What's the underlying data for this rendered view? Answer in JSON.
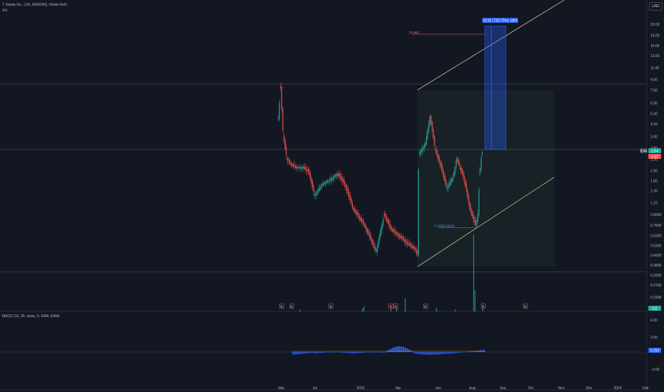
{
  "header": {
    "title": "T Stamp Inc., 12h, NASDAQ, Heikin Ashi",
    "volume_label": "Vol",
    "macd_label": "MACD (12, 26, close, 9, EMA, EMA)",
    "currency": "USD"
  },
  "colors": {
    "background": "#131722",
    "up": "#26a69a",
    "down": "#ef5350",
    "channel": "#d6d6a0",
    "target_box": "#2962ff",
    "macd_hist": "#2962ff"
  },
  "chart_data": {
    "type": "candlestick",
    "symbol": "IDAI",
    "scale": "log",
    "price_axis_ticks": [
      "23.00",
      "19.00",
      "16.00",
      "13.50",
      "11.00",
      "9.00",
      "7.50",
      "6.00",
      "5.00",
      "4.20",
      "3.40",
      "2.80",
      "2.30",
      "1.90",
      "1.60",
      "1.35",
      "1.10",
      "0.9000",
      "0.7500",
      "0.6300",
      "0.5300",
      "0.4500",
      "0.3800",
      "0.3200",
      "0.2700",
      "0.2200"
    ],
    "time_axis_ticks": [
      "Mar",
      "Jul",
      "2023",
      "Apr",
      "Jun",
      "Aug",
      "Sep",
      "Oct",
      "Nov",
      "Dec",
      "2024",
      "Feb"
    ],
    "macd_axis_ticks": [
      "4.00",
      "2.00",
      "−2.00"
    ],
    "last_price_label": "2.64",
    "last_price_secondary_label": "2.42",
    "volume_badge": "111",
    "macd_badge": "0.250",
    "target_label": "18.91 (720.75%) 1891",
    "target_price_label": "(15.86)",
    "support_label": "0.786(0.6920)",
    "event_markers": [
      "E",
      "E",
      "E",
      "S",
      "E",
      "E",
      "E",
      "E"
    ],
    "price_series": [
      {
        "date": "2022-02-25",
        "close": 4.6
      },
      {
        "date": "2022-03-03",
        "close": 7.8
      },
      {
        "date": "2022-03-10",
        "close": 3.4
      },
      {
        "date": "2022-03-20",
        "close": 2.3
      },
      {
        "date": "2022-04-01",
        "close": 2.1
      },
      {
        "date": "2022-04-15",
        "close": 2.0
      },
      {
        "date": "2022-05-01",
        "close": 2.0
      },
      {
        "date": "2022-05-15",
        "close": 1.9
      },
      {
        "date": "2022-06-01",
        "close": 1.25
      },
      {
        "date": "2022-06-20",
        "close": 1.5
      },
      {
        "date": "2022-07-10",
        "close": 1.6
      },
      {
        "date": "2022-08-01",
        "close": 1.8
      },
      {
        "date": "2022-08-20",
        "close": 1.5
      },
      {
        "date": "2022-09-10",
        "close": 1.0
      },
      {
        "date": "2022-10-10",
        "close": 0.75
      },
      {
        "date": "2022-11-10",
        "close": 0.48
      },
      {
        "date": "2022-12-01",
        "close": 0.9
      },
      {
        "date": "2022-12-20",
        "close": 0.7
      },
      {
        "date": "2023-01-10",
        "close": 0.62
      },
      {
        "date": "2023-02-01",
        "close": 0.55
      },
      {
        "date": "2023-02-20",
        "close": 0.5
      },
      {
        "date": "2023-02-28",
        "close": 0.45
      },
      {
        "date": "2023-03-02",
        "close": 2.5
      },
      {
        "date": "2023-03-20",
        "close": 3.0
      },
      {
        "date": "2023-04-01",
        "close": 4.8
      },
      {
        "date": "2023-04-15",
        "close": 2.7
      },
      {
        "date": "2023-05-01",
        "close": 2.0
      },
      {
        "date": "2023-05-15",
        "close": 1.4
      },
      {
        "date": "2023-06-01",
        "close": 1.7
      },
      {
        "date": "2023-06-10",
        "close": 2.3
      },
      {
        "date": "2023-06-20",
        "close": 2.0
      },
      {
        "date": "2023-07-01",
        "close": 1.6
      },
      {
        "date": "2023-07-15",
        "close": 1.0
      },
      {
        "date": "2023-07-31",
        "close": 0.75
      },
      {
        "date": "2023-08-05",
        "close": 0.9
      },
      {
        "date": "2023-08-10",
        "close": 1.8
      },
      {
        "date": "2023-08-15",
        "close": 2.5
      },
      {
        "date": "2023-08-20",
        "close": 2.64
      }
    ],
    "channel": {
      "upper": [
        {
          "date": "2023-02-28",
          "price": 7.5
        },
        {
          "date": "2024-01-31",
          "price": 32
        }
      ],
      "lower": [
        {
          "date": "2023-02-28",
          "price": 0.37
        },
        {
          "date": "2024-01-31",
          "price": 1.7
        }
      ]
    },
    "horizontal_levels": [
      8.3,
      2.72,
      0.34
    ],
    "target_box": {
      "start": "2023-08-25",
      "end": "2023-09-03",
      "low": 2.72,
      "high": 22.3
    },
    "shaded_zone": {
      "start": "2023-02-28",
      "end": "2024-01-31"
    },
    "macd_hist_range": [
      -0.8,
      1.0
    ]
  }
}
